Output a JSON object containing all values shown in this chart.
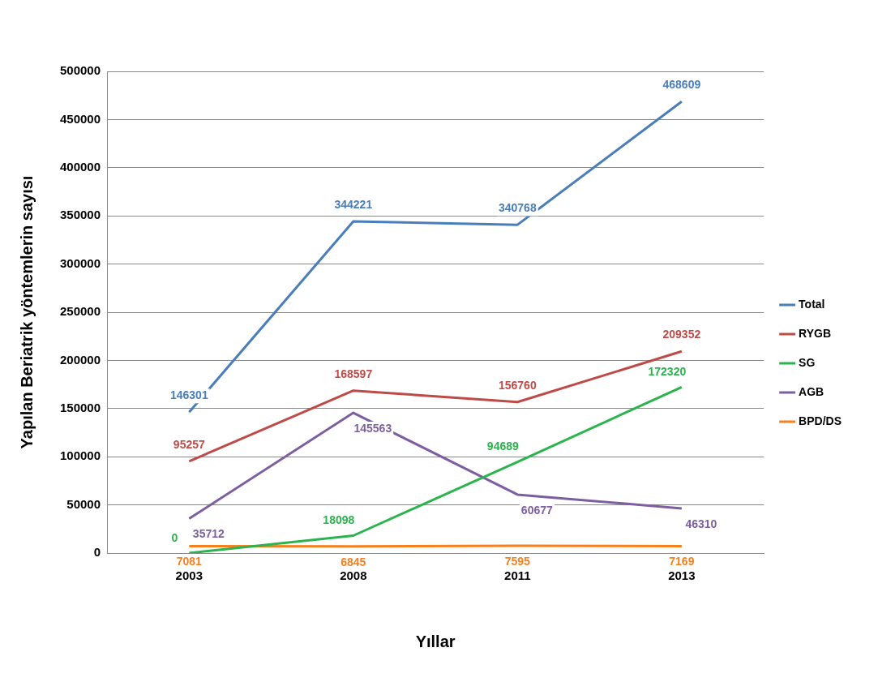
{
  "chart_data": {
    "type": "line",
    "xlabel": "Yıllar",
    "ylabel": "Yapılan Beriatrik yöntemlerin sayısı",
    "categories": [
      "2003",
      "2008",
      "2011",
      "2013"
    ],
    "series": [
      {
        "name": "Total",
        "color": "#4a7ebb",
        "values": [
          146301,
          344221,
          340768,
          468609
        ]
      },
      {
        "name": "RYGB",
        "color": "#be4b48",
        "values": [
          95257,
          168597,
          156760,
          209352
        ]
      },
      {
        "name": "SG",
        "color": "#2bb34d",
        "values": [
          0,
          18098,
          94689,
          172320
        ]
      },
      {
        "name": "AGB",
        "color": "#7d5fa0",
        "values": [
          35712,
          145563,
          60677,
          46310
        ]
      },
      {
        "name": "BPD/DS",
        "color": "#f7801e",
        "values": [
          7081,
          6845,
          7595,
          7169
        ]
      }
    ],
    "ylim": [
      0,
      500000
    ],
    "yticks": [
      0,
      50000,
      100000,
      150000,
      200000,
      250000,
      300000,
      350000,
      400000,
      450000,
      500000
    ],
    "grid": "y",
    "legend": "right",
    "marker": "none",
    "line_style": "solid",
    "data_labels": true
  }
}
